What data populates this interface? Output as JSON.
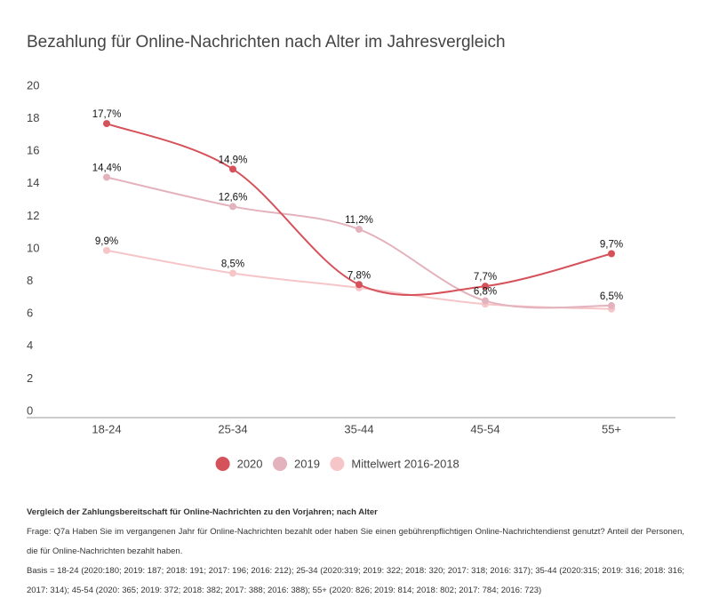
{
  "chart_data": {
    "type": "line",
    "title": "Bezahlung für Online-Nachrichten nach Alter im Jahresvergleich",
    "categories": [
      "18-24",
      "25-34",
      "35-44",
      "45-54",
      "55+"
    ],
    "series": [
      {
        "name": "2020",
        "color": "#d6525b",
        "values": [
          17.7,
          14.9,
          7.8,
          7.7,
          9.7
        ],
        "value_labels": [
          "17,7%",
          "14,9%",
          "7,8%",
          "7,7%",
          "9,7%"
        ]
      },
      {
        "name": "2019",
        "color": "#e3b2bc",
        "values": [
          14.4,
          12.6,
          11.2,
          6.8,
          6.5
        ],
        "value_labels": [
          "14,4%",
          "12,6%",
          "11,2%",
          "6,8%",
          "6,5%"
        ]
      },
      {
        "name": "Mittelwert 2016-2018",
        "color": "#f6c5c8",
        "values": [
          9.9,
          8.5,
          7.6,
          6.6,
          6.3
        ],
        "value_labels": [
          "9,9%",
          "8,5%",
          null,
          null,
          null
        ]
      }
    ],
    "ylim": [
      0,
      20
    ],
    "yticks": [
      0,
      2,
      4,
      6,
      8,
      10,
      12,
      14,
      16,
      18,
      20
    ],
    "grid": false,
    "legend": "bottom"
  },
  "footnote": {
    "heading": "Vergleich der Zahlungsbereitschaft für Online-Nachrichten zu den Vorjahren; nach Alter",
    "lines": [
      "Frage: Q7a Haben Sie im vergangenen Jahr für Online-Nachrichten bezahlt oder haben Sie einen gebührenpflichtigen Online-Nachrichtendienst genutzt? Anteil der Personen, die für Online-Nachrichten bezahlt haben.",
      "Basis = 18-24 (2020:180; 2019: 187; 2018: 191; 2017: 196; 2016: 212); 25-34 (2020:319; 2019: 322; 2018: 320; 2017: 318; 2016: 317); 35-44 (2020:315; 2019: 316; 2018: 316; 2017: 314); 45-54 (2020: 365; 2019: 372; 2018: 382; 2017: 388; 2016: 388); 55+ (2020: 826; 2019: 814; 2018: 802; 2017: 784; 2016: 723)"
    ]
  }
}
